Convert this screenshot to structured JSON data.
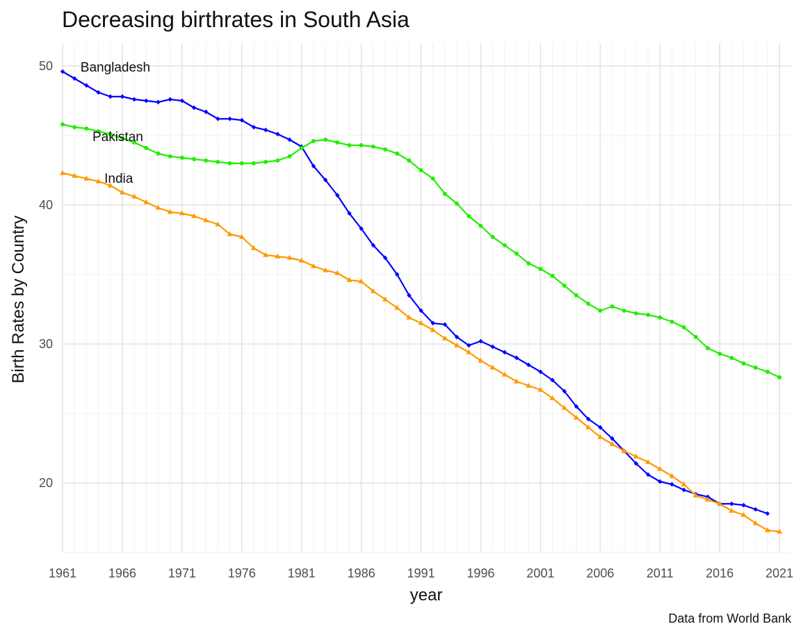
{
  "chart_data": {
    "type": "line",
    "title": "Decreasing birthrates in South Asia",
    "caption": "Data from World Bank",
    "xlabel": "year",
    "ylabel": "Birth Rates by Country",
    "xlim": [
      1961,
      2021
    ],
    "ylim": [
      15,
      51.5
    ],
    "x_ticks": [
      1961,
      1966,
      1971,
      1976,
      1981,
      1986,
      1991,
      1996,
      2001,
      2006,
      2011,
      2016,
      2021
    ],
    "y_ticks": [
      20,
      30,
      40,
      50
    ],
    "grid": true,
    "legend": "none",
    "annotations": [
      {
        "text": "Bangladesh",
        "x": 1962.5,
        "y": 49.9
      },
      {
        "text": "Pakistan",
        "x": 1963.5,
        "y": 44.9
      },
      {
        "text": "India",
        "x": 1964.5,
        "y": 41.9
      }
    ],
    "series": [
      {
        "name": "Bangladesh",
        "color": "#0000ff",
        "marker": "diamond",
        "x": [
          1961,
          1962,
          1963,
          1964,
          1965,
          1966,
          1967,
          1968,
          1969,
          1970,
          1971,
          1972,
          1973,
          1974,
          1975,
          1976,
          1977,
          1978,
          1979,
          1980,
          1981,
          1982,
          1983,
          1984,
          1985,
          1986,
          1987,
          1988,
          1989,
          1990,
          1991,
          1992,
          1993,
          1994,
          1995,
          1996,
          1997,
          1998,
          1999,
          2000,
          2001,
          2002,
          2003,
          2004,
          2005,
          2006,
          2007,
          2008,
          2009,
          2010,
          2011,
          2012,
          2013,
          2014,
          2015,
          2016,
          2017,
          2018,
          2019,
          2020
        ],
        "values": [
          49.6,
          49.1,
          48.6,
          48.1,
          47.8,
          47.8,
          47.6,
          47.5,
          47.4,
          47.6,
          47.5,
          47.0,
          46.7,
          46.2,
          46.2,
          46.1,
          45.6,
          45.4,
          45.1,
          44.7,
          44.2,
          42.8,
          41.8,
          40.7,
          39.4,
          38.3,
          37.1,
          36.2,
          35.0,
          33.5,
          32.4,
          31.5,
          31.4,
          30.5,
          29.9,
          30.2,
          29.8,
          29.4,
          29.0,
          28.5,
          28.0,
          27.4,
          26.6,
          25.5,
          24.6,
          24.0,
          23.2,
          22.3,
          21.4,
          20.6,
          20.1,
          19.9,
          19.5,
          19.2,
          19.0,
          18.5,
          18.5,
          18.4,
          18.1,
          17.8
        ]
      },
      {
        "name": "Pakistan",
        "color": "#22ee00",
        "marker": "circle",
        "x": [
          1961,
          1962,
          1963,
          1964,
          1965,
          1966,
          1967,
          1968,
          1969,
          1970,
          1971,
          1972,
          1973,
          1974,
          1975,
          1976,
          1977,
          1978,
          1979,
          1980,
          1981,
          1982,
          1983,
          1984,
          1985,
          1986,
          1987,
          1988,
          1989,
          1990,
          1991,
          1992,
          1993,
          1994,
          1995,
          1996,
          1997,
          1998,
          1999,
          2000,
          2001,
          2002,
          2003,
          2004,
          2005,
          2006,
          2007,
          2008,
          2009,
          2010,
          2011,
          2012,
          2013,
          2014,
          2015,
          2016,
          2017,
          2018,
          2019,
          2020,
          2021
        ],
        "values": [
          45.8,
          45.6,
          45.5,
          45.3,
          45.1,
          44.8,
          44.5,
          44.1,
          43.7,
          43.5,
          43.4,
          43.3,
          43.2,
          43.1,
          43.0,
          43.0,
          43.0,
          43.1,
          43.2,
          43.5,
          44.1,
          44.6,
          44.7,
          44.5,
          44.3,
          44.3,
          44.2,
          44.0,
          43.7,
          43.2,
          42.5,
          41.9,
          40.8,
          40.1,
          39.2,
          38.5,
          37.7,
          37.1,
          36.5,
          35.8,
          35.4,
          34.9,
          34.2,
          33.5,
          32.9,
          32.4,
          32.7,
          32.4,
          32.2,
          32.1,
          31.9,
          31.6,
          31.2,
          30.5,
          29.7,
          29.3,
          29.0,
          28.6,
          28.3,
          28.0,
          27.6
        ]
      },
      {
        "name": "India",
        "color": "#ff9900",
        "marker": "triangle",
        "x": [
          1961,
          1962,
          1963,
          1964,
          1965,
          1966,
          1967,
          1968,
          1969,
          1970,
          1971,
          1972,
          1973,
          1974,
          1975,
          1976,
          1977,
          1978,
          1979,
          1980,
          1981,
          1982,
          1983,
          1984,
          1985,
          1986,
          1987,
          1988,
          1989,
          1990,
          1991,
          1992,
          1993,
          1994,
          1995,
          1996,
          1997,
          1998,
          1999,
          2000,
          2001,
          2002,
          2003,
          2004,
          2005,
          2006,
          2007,
          2008,
          2009,
          2010,
          2011,
          2012,
          2013,
          2014,
          2015,
          2016,
          2017,
          2018,
          2019,
          2020,
          2021
        ],
        "values": [
          42.3,
          42.1,
          41.9,
          41.7,
          41.4,
          40.9,
          40.6,
          40.2,
          39.8,
          39.5,
          39.4,
          39.2,
          38.9,
          38.6,
          37.9,
          37.7,
          36.9,
          36.4,
          36.3,
          36.2,
          36.0,
          35.6,
          35.3,
          35.1,
          34.6,
          34.5,
          33.8,
          33.2,
          32.6,
          31.9,
          31.5,
          31.0,
          30.4,
          29.9,
          29.4,
          28.8,
          28.3,
          27.8,
          27.3,
          27.0,
          26.7,
          26.1,
          25.4,
          24.7,
          24.0,
          23.3,
          22.8,
          22.3,
          21.9,
          21.5,
          21.0,
          20.5,
          19.9,
          19.1,
          18.8,
          18.5,
          18.0,
          17.7,
          17.1,
          16.6,
          16.5
        ]
      }
    ]
  }
}
